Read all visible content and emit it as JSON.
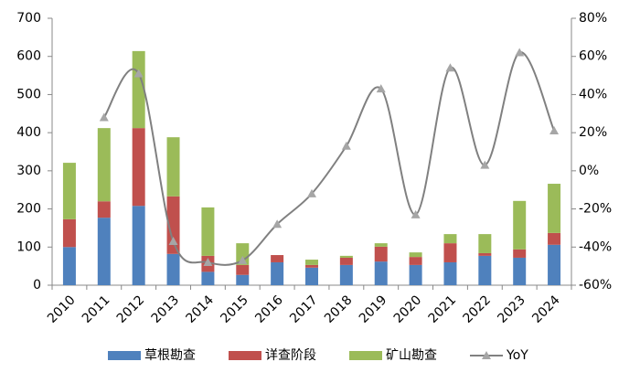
{
  "chart_data": {
    "type": "bar-line",
    "categories": [
      "2010",
      "2011",
      "2012",
      "2013",
      "2014",
      "2015",
      "2016",
      "2017",
      "2018",
      "2019",
      "2020",
      "2021",
      "2022",
      "2023",
      "2024"
    ],
    "series": [
      {
        "name": "草根勘查",
        "color": "#4f81bd",
        "type": "bar",
        "values": [
          100,
          177,
          208,
          82,
          35,
          27,
          60,
          46,
          53,
          62,
          53,
          60,
          77,
          72,
          106
        ]
      },
      {
        "name": "详查阶段",
        "color": "#c0504d",
        "type": "bar",
        "values": [
          73,
          43,
          204,
          151,
          42,
          26,
          19,
          7,
          19,
          39,
          21,
          50,
          7,
          22,
          31
        ]
      },
      {
        "name": "矿山勘查",
        "color": "#9bbb59",
        "type": "bar",
        "values": [
          148,
          192,
          202,
          155,
          127,
          57,
          0,
          14,
          5,
          9,
          12,
          24,
          50,
          127,
          129
        ]
      },
      {
        "name": "YoY",
        "color": "#808080",
        "type": "line",
        "axis": "y2",
        "values": [
          null,
          28,
          51,
          -37,
          -48,
          -47,
          -28,
          -12,
          13,
          43,
          -23,
          54,
          3,
          62,
          21
        ]
      }
    ],
    "ylim": [
      0,
      700
    ],
    "yticks": [
      0,
      100,
      200,
      300,
      400,
      500,
      600,
      700
    ],
    "y2lim": [
      -60,
      80
    ],
    "y2ticks": [
      {
        "value": -60,
        "label": "-60%"
      },
      {
        "value": -40,
        "label": "-40%"
      },
      {
        "value": -20,
        "label": "-20%"
      },
      {
        "value": 0,
        "label": "0%"
      },
      {
        "value": 20,
        "label": "20%"
      },
      {
        "value": 40,
        "label": "40%"
      },
      {
        "value": 60,
        "label": "60%"
      },
      {
        "value": 80,
        "label": "80%"
      }
    ],
    "legend": "bottom"
  }
}
